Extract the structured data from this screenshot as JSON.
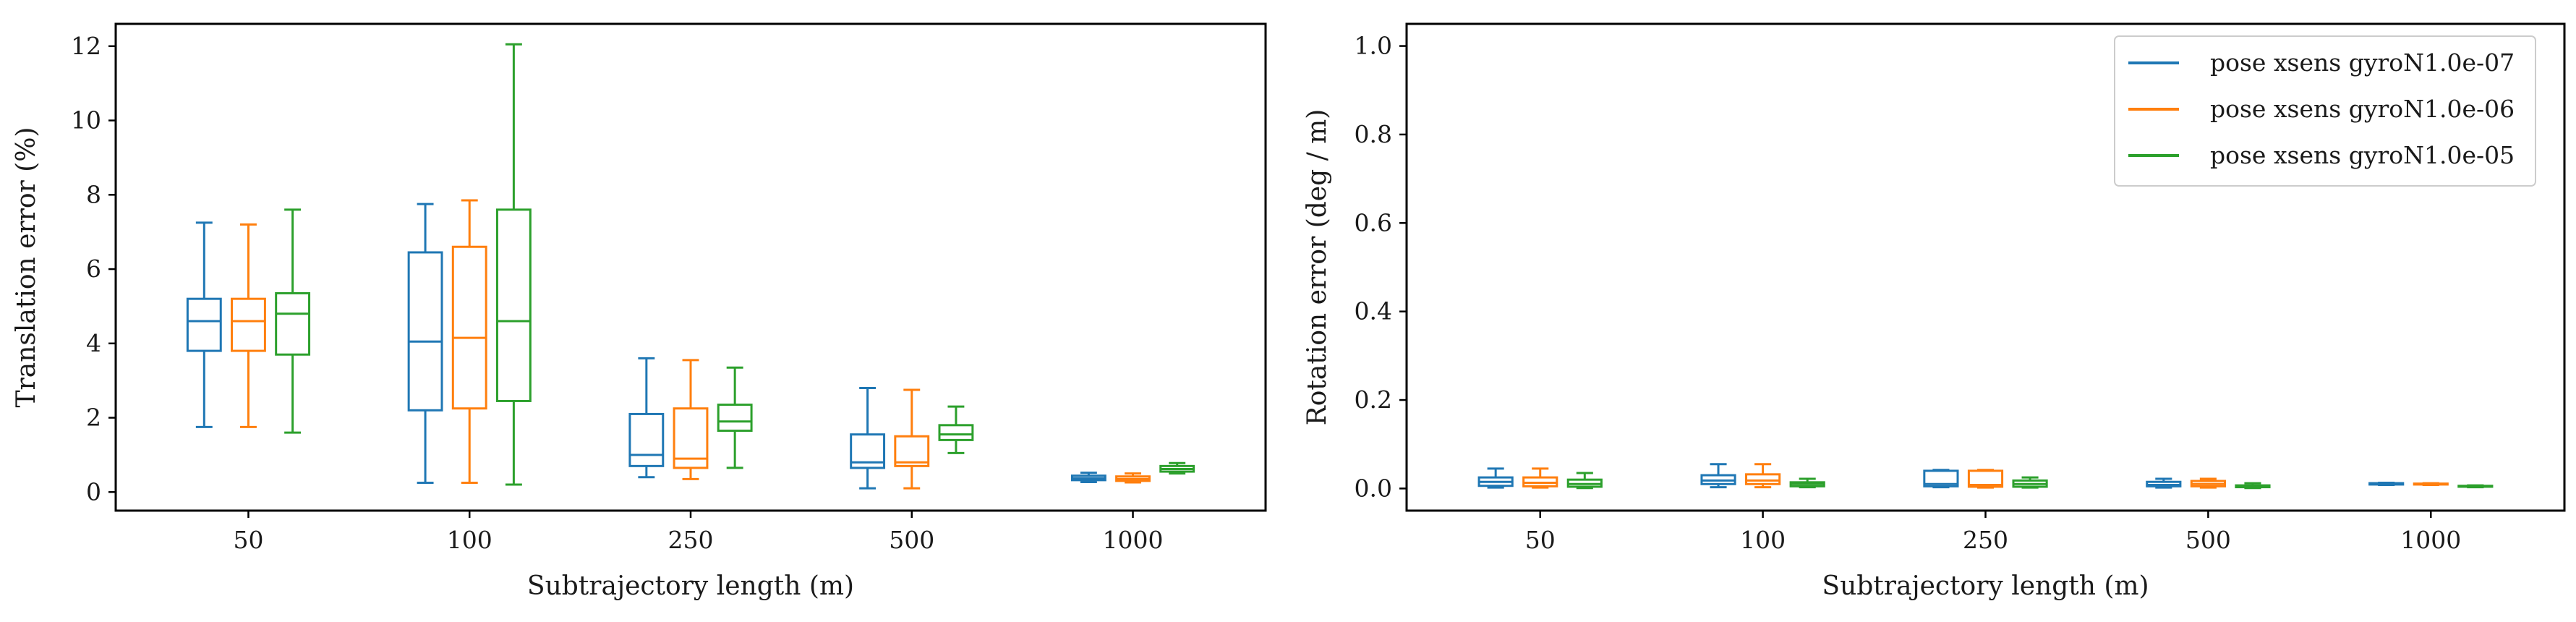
{
  "series_colors": [
    "#1f77b4",
    "#ff7f0e",
    "#2ca02c"
  ],
  "legend": {
    "placement": "top-right",
    "entries": [
      "pose xsens gyroN1.0e-07",
      "pose xsens gyroN1.0e-06",
      "pose xsens gyroN1.0e-05"
    ]
  },
  "chart_data": [
    {
      "type": "box",
      "xlabel": "Subtrajectory length (m)",
      "ylabel": "Translation error (%)",
      "categories": [
        "50",
        "100",
        "250",
        "500",
        "1000"
      ],
      "ylim": [
        -0.5,
        12.6
      ],
      "yticks": [
        0,
        2,
        4,
        6,
        8,
        10,
        12
      ],
      "grid": false,
      "series": [
        {
          "name": "pose xsens gyroN1.0e-07",
          "boxes": [
            {
              "whislo": 1.75,
              "q1": 3.8,
              "med": 4.6,
              "q3": 5.2,
              "whishi": 7.25
            },
            {
              "whislo": 0.25,
              "q1": 2.2,
              "med": 4.05,
              "q3": 6.45,
              "whishi": 7.75
            },
            {
              "whislo": 0.4,
              "q1": 0.7,
              "med": 1.0,
              "q3": 2.1,
              "whishi": 3.6
            },
            {
              "whislo": 0.1,
              "q1": 0.65,
              "med": 0.8,
              "q3": 1.55,
              "whishi": 2.8
            },
            {
              "whislo": 0.27,
              "q1": 0.32,
              "med": 0.37,
              "q3": 0.44,
              "whishi": 0.52
            }
          ]
        },
        {
          "name": "pose xsens gyroN1.0e-06",
          "boxes": [
            {
              "whislo": 1.75,
              "q1": 3.8,
              "med": 4.6,
              "q3": 5.2,
              "whishi": 7.2
            },
            {
              "whislo": 0.25,
              "q1": 2.25,
              "med": 4.15,
              "q3": 6.6,
              "whishi": 7.85
            },
            {
              "whislo": 0.35,
              "q1": 0.65,
              "med": 0.9,
              "q3": 2.25,
              "whishi": 3.55
            },
            {
              "whislo": 0.1,
              "q1": 0.7,
              "med": 0.8,
              "q3": 1.5,
              "whishi": 2.75
            },
            {
              "whislo": 0.26,
              "q1": 0.3,
              "med": 0.35,
              "q3": 0.42,
              "whishi": 0.5
            }
          ]
        },
        {
          "name": "pose xsens gyroN1.0e-05",
          "boxes": [
            {
              "whislo": 1.6,
              "q1": 3.7,
              "med": 4.8,
              "q3": 5.35,
              "whishi": 7.6
            },
            {
              "whislo": 0.2,
              "q1": 2.45,
              "med": 4.6,
              "q3": 7.6,
              "whishi": 12.05
            },
            {
              "whislo": 0.65,
              "q1": 1.65,
              "med": 1.9,
              "q3": 2.35,
              "whishi": 3.35
            },
            {
              "whislo": 1.05,
              "q1": 1.4,
              "med": 1.55,
              "q3": 1.8,
              "whishi": 2.3
            },
            {
              "whislo": 0.5,
              "q1": 0.55,
              "med": 0.62,
              "q3": 0.7,
              "whishi": 0.78
            }
          ]
        }
      ]
    },
    {
      "type": "box",
      "xlabel": "Subtrajectory length (m)",
      "ylabel": "Rotation error (deg / m)",
      "categories": [
        "50",
        "100",
        "250",
        "500",
        "1000"
      ],
      "ylim": [
        -0.05,
        1.05
      ],
      "yticks": [
        "0.0",
        "0.2",
        "0.4",
        "0.6",
        "0.8",
        "1.0"
      ],
      "grid": false,
      "series": [
        {
          "name": "pose xsens gyroN1.0e-07",
          "boxes": [
            {
              "whislo": 0.002,
              "q1": 0.006,
              "med": 0.015,
              "q3": 0.025,
              "whishi": 0.045
            },
            {
              "whislo": 0.003,
              "q1": 0.01,
              "med": 0.018,
              "q3": 0.03,
              "whishi": 0.055
            },
            {
              "whislo": 0.003,
              "q1": 0.005,
              "med": 0.01,
              "q3": 0.04,
              "whishi": 0.042
            },
            {
              "whislo": 0.002,
              "q1": 0.005,
              "med": 0.008,
              "q3": 0.015,
              "whishi": 0.022
            },
            {
              "whislo": 0.008,
              "q1": 0.009,
              "med": 0.01,
              "q3": 0.012,
              "whishi": 0.013
            }
          ]
        },
        {
          "name": "pose xsens gyroN1.0e-06",
          "boxes": [
            {
              "whislo": 0.002,
              "q1": 0.005,
              "med": 0.013,
              "q3": 0.025,
              "whishi": 0.045
            },
            {
              "whislo": 0.003,
              "q1": 0.01,
              "med": 0.018,
              "q3": 0.032,
              "whishi": 0.055
            },
            {
              "whislo": 0.002,
              "q1": 0.004,
              "med": 0.008,
              "q3": 0.04,
              "whishi": 0.042
            },
            {
              "whislo": 0.002,
              "q1": 0.005,
              "med": 0.01,
              "q3": 0.017,
              "whishi": 0.022
            },
            {
              "whislo": 0.008,
              "q1": 0.009,
              "med": 0.01,
              "q3": 0.011,
              "whishi": 0.012
            }
          ]
        },
        {
          "name": "pose xsens gyroN1.0e-05",
          "boxes": [
            {
              "whislo": 0.001,
              "q1": 0.004,
              "med": 0.01,
              "q3": 0.02,
              "whishi": 0.035
            },
            {
              "whislo": 0.003,
              "q1": 0.005,
              "med": 0.01,
              "q3": 0.014,
              "whishi": 0.022
            },
            {
              "whislo": 0.002,
              "q1": 0.004,
              "med": 0.01,
              "q3": 0.018,
              "whishi": 0.025
            },
            {
              "whislo": 0.001,
              "q1": 0.003,
              "med": 0.005,
              "q3": 0.007,
              "whishi": 0.012
            },
            {
              "whislo": 0.003,
              "q1": 0.004,
              "med": 0.005,
              "q3": 0.006,
              "whishi": 0.007
            }
          ]
        }
      ]
    }
  ]
}
